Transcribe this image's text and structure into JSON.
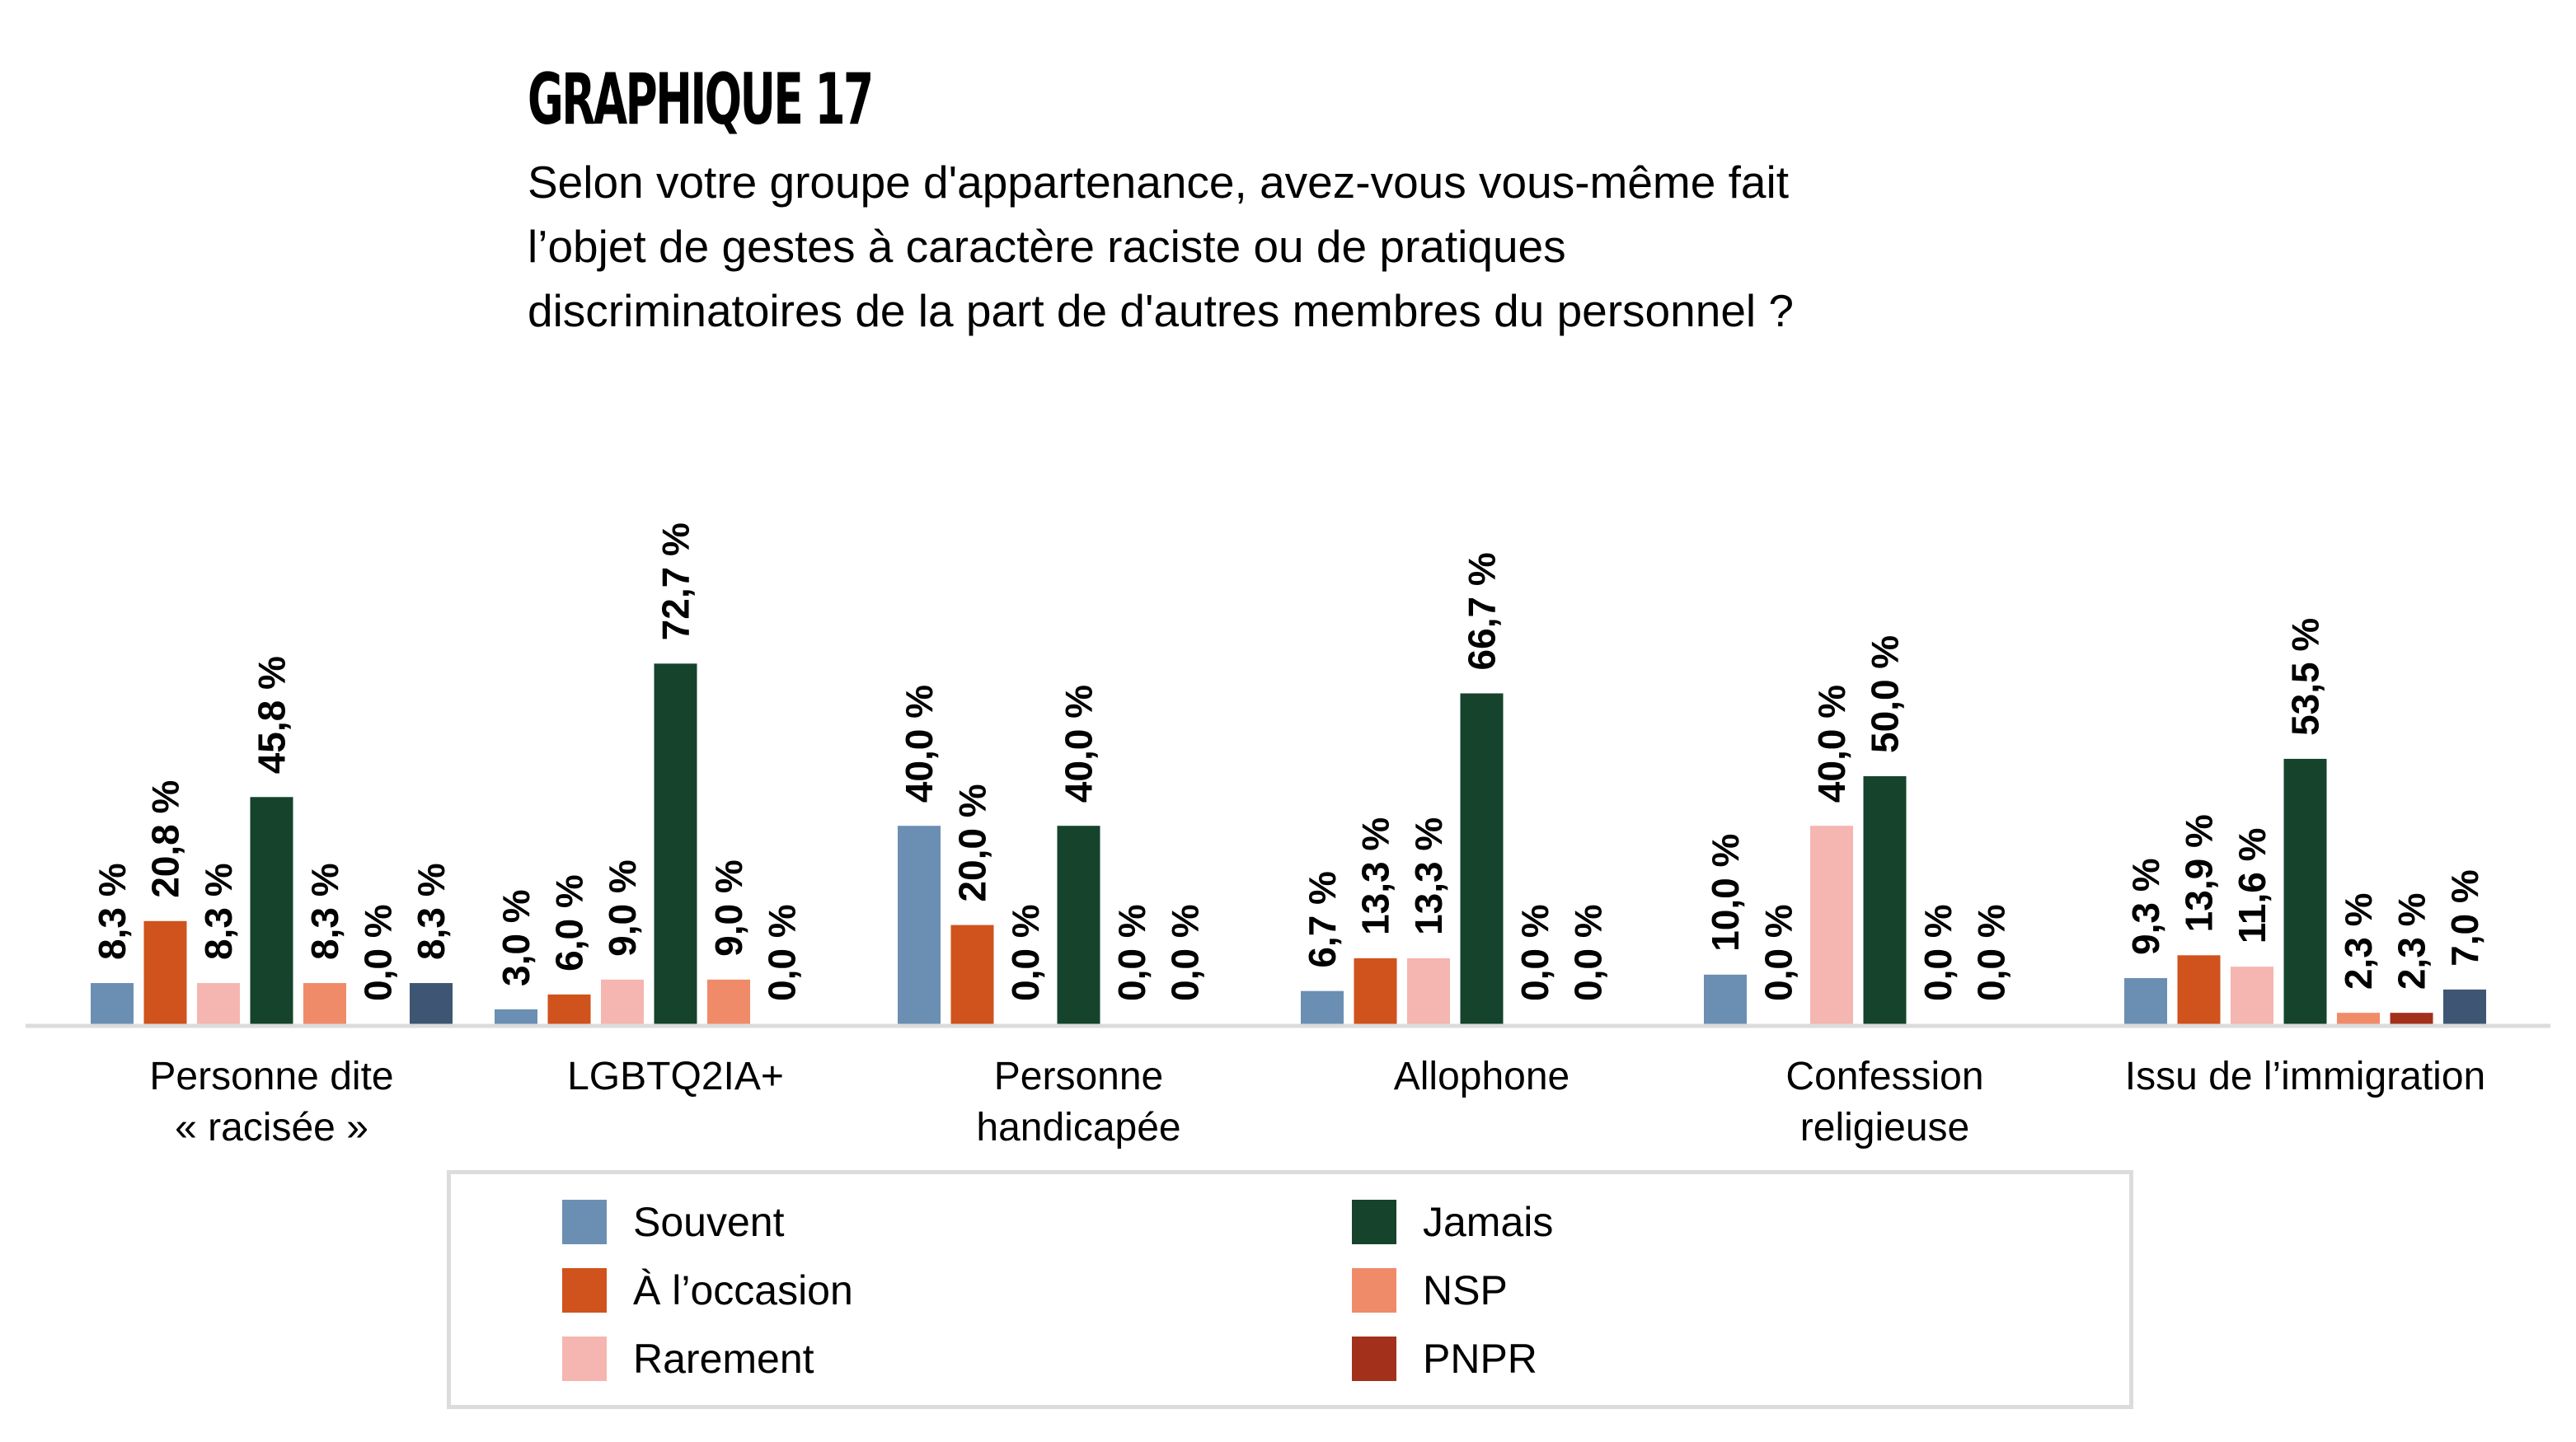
{
  "header": {
    "title": "GRAPHIQUE 17",
    "subtitle_lines": [
      "Selon votre groupe d'appartenance, avez-vous vous-même fait",
      "l’objet de gestes à caractère raciste ou de pratiques",
      "discriminatoires de la part de d'autres membres du personnel ?"
    ]
  },
  "chart_data": {
    "type": "bar",
    "title": "GRAPHIQUE 17",
    "subtitle": "Selon votre groupe d'appartenance, avez-vous vous-même fait l’objet de gestes à caractère raciste ou de pratiques discriminatoires de la part de d'autres membres du personnel ?",
    "xlabel": "",
    "ylabel": "",
    "ylim": [
      0,
      80
    ],
    "grid": false,
    "legend_position": "bottom",
    "value_format": "percent, French decimal comma, rotated labels above bars",
    "categories": [
      [
        "Personne dite",
        "« racisée »"
      ],
      [
        "LGBTQ2IA+"
      ],
      [
        "Personne",
        "handicapée"
      ],
      [
        "Allophone"
      ],
      [
        "Confession",
        "religieuse"
      ],
      [
        "Issu de l’immigration"
      ]
    ],
    "series": [
      {
        "name": "Souvent",
        "color": "#6b8fb3",
        "values": [
          8.3,
          3.0,
          40.0,
          6.7,
          10.0,
          9.3
        ],
        "labels": [
          "8,3 %",
          "3,0 %",
          "40,0 %",
          "6,7 %",
          "10,0 %",
          "9,3 %"
        ]
      },
      {
        "name": "À l’occasion",
        "color": "#d0521c",
        "values": [
          20.8,
          6.0,
          20.0,
          13.3,
          0.0,
          13.9
        ],
        "labels": [
          "20,8 %",
          "6,0 %",
          "20,0 %",
          "13,3 %",
          "0,0 %",
          "13,9 %"
        ]
      },
      {
        "name": "Rarement",
        "color": "#f5b5b0",
        "values": [
          8.3,
          9.0,
          0.0,
          13.3,
          40.0,
          11.6
        ],
        "labels": [
          "8,3 %",
          "9,0 %",
          "0,0 %",
          "13,3 %",
          "40,0 %",
          "11,6 %"
        ]
      },
      {
        "name": "Jamais",
        "color": "#15432c",
        "values": [
          45.8,
          72.7,
          40.0,
          66.7,
          50.0,
          53.5
        ],
        "labels": [
          "45,8 %",
          "72,7 %",
          "40,0 %",
          "66,7 %",
          "50,0 %",
          "53,5 %"
        ]
      },
      {
        "name": "NSP",
        "color": "#f08b69",
        "values": [
          8.3,
          9.0,
          0.0,
          0.0,
          0.0,
          2.3
        ],
        "labels": [
          "8,3 %",
          "9,0 %",
          "0,0 %",
          "0,0 %",
          "0,0 %",
          "2,3 %"
        ]
      },
      {
        "name": "PNPR",
        "color": "#a3301b",
        "values": [
          0.0,
          0.0,
          0.0,
          0.0,
          0.0,
          2.3
        ],
        "labels": [
          "0,0 %",
          "0,0 %",
          "0,0 %",
          "0,0 %",
          "0,0 %",
          "2,3 %"
        ]
      },
      {
        "name": "",
        "color": "#3e5673",
        "values": [
          8.3,
          null,
          null,
          null,
          null,
          7.0
        ],
        "labels": [
          "8,3 %",
          null,
          null,
          null,
          null,
          "7,0 %"
        ]
      }
    ],
    "axis_color": "#dcdcdc"
  },
  "legend": {
    "items": [
      {
        "label": "Souvent",
        "color": "#6b8fb3"
      },
      {
        "label": "À l’occasion",
        "color": "#d0521c"
      },
      {
        "label": "Rarement",
        "color": "#f5b5b0"
      },
      {
        "label": "Jamais",
        "color": "#15432c"
      },
      {
        "label": "NSP",
        "color": "#f08b69"
      },
      {
        "label": "PNPR",
        "color": "#a3301b"
      }
    ]
  }
}
